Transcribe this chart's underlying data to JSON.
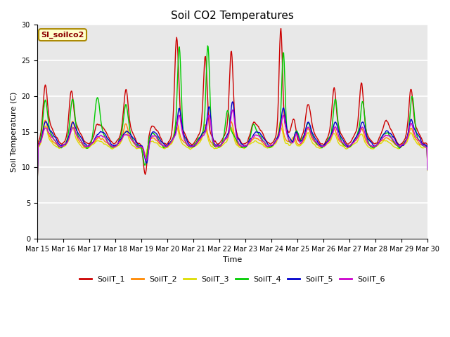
{
  "title": "Soil CO2 Temperatures",
  "xlabel": "Time",
  "ylabel": "Soil Temperature (C)",
  "annotation": "SI_soilco2",
  "ylim": [
    0,
    30
  ],
  "yticks": [
    0,
    5,
    10,
    15,
    20,
    25,
    30
  ],
  "series_names": [
    "SoilT_1",
    "SoilT_2",
    "SoilT_3",
    "SoilT_4",
    "SoilT_5",
    "SoilT_6"
  ],
  "series_colors": [
    "#cc0000",
    "#ff8800",
    "#dddd00",
    "#00cc00",
    "#0000cc",
    "#cc00cc"
  ],
  "fig_bg": "#ffffff",
  "ax_bg": "#e8e8e8",
  "grid_color": "#ffffff",
  "x_tick_labels": [
    "Mar 15",
    "Mar 16",
    "Mar 17",
    "Mar 18",
    "Mar 19",
    "Mar 20",
    "Mar 21",
    "Mar 22",
    "Mar 23",
    "Mar 24",
    "Mar 25",
    "Mar 26",
    "Mar 27",
    "Mar 28",
    "Mar 29",
    "Mar 30"
  ],
  "title_fontsize": 11,
  "label_fontsize": 8,
  "tick_fontsize": 7,
  "legend_fontsize": 8,
  "lw": 1.0
}
